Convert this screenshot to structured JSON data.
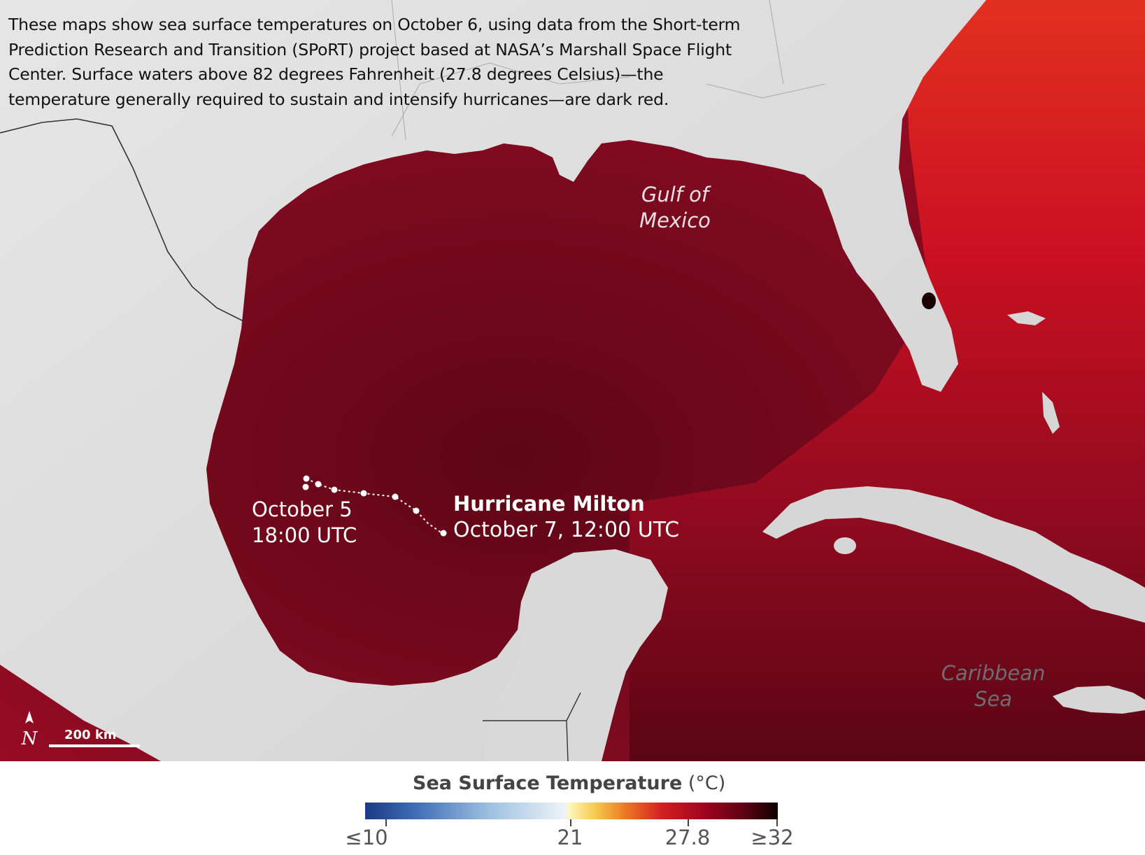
{
  "caption": {
    "line1": "These maps show sea surface temperatures on October 6, using data from the Short-term",
    "line2": "Prediction Research and Transition (SPoRT) project based at NASA’s Marshall Space Flight",
    "line3": "Center. Surface waters above 82 degrees Fahrenheit (27.8 degrees Celsius)—the",
    "line4": "temperature generally required to sustain and intensify hurricanes—are dark red."
  },
  "map": {
    "gulf_label_1": "Gulf of",
    "gulf_label_2": "Mexico",
    "caribbean_label_1": "Caribbean",
    "caribbean_label_2": "Sea",
    "track_start_1": "October 5",
    "track_start_2": "18:00 UTC",
    "hurricane_name": "Hurricane Milton",
    "track_end": "October 7, 12:00 UTC",
    "scale_label": "200 km",
    "north_icon": "north-arrow-icon",
    "colors": {
      "land": "#dcdcdc",
      "sea_warm": "#8c0a22",
      "sea_dark": "#5a0514",
      "atlantic": "#c8101e"
    }
  },
  "legend": {
    "title": "Sea Surface Temperature",
    "unit": "(°C)",
    "ticks": [
      "≤10",
      "21",
      "27.8",
      "≥32"
    ]
  }
}
